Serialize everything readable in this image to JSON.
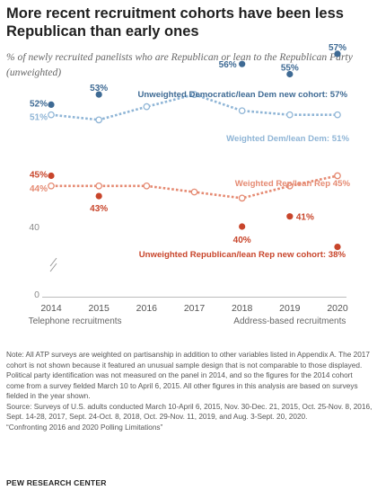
{
  "title": "More recent recruitment cohorts have been less Republican than early ones",
  "subtitle": "% of newly recruited panelists who are Republican or lean to the Republican Party (unweighted)",
  "note": "Note: All ATP surveys are weighted on partisanship in addition to other variables listed in Appendix A. The 2017 cohort is not shown because it featured an unusual sample design that is not comparable to those displayed. Political party identification was not measured on the panel in 2014, and so the figures for the 2014 cohort come from a survey fielded March 10 to April 6, 2015. All other figures in this analysis are based on surveys fielded in the year shown.",
  "source": "Source: Surveys of U.S. adults conducted March 10-April 6, 2015, Nov. 30-Dec. 21, 2015, Oct. 25-Nov. 8, 2016, Sept. 14-28, 2017, Sept. 24-Oct. 8, 2018, Oct. 29-Nov. 11, 2019, and Aug. 3-Sept. 20, 2020.",
  "report": "“Confronting 2016 and 2020 Polling Limitations”",
  "org": "PEW RESEARCH CENTER",
  "chart_data": {
    "type": "scatter",
    "title": "More recent recruitment cohorts have been less Republican than early ones",
    "subtitle": "% of newly recruited panelists who are Republican or lean to the Republican Party (unweighted)",
    "x": [
      2014,
      2015,
      2016,
      2017,
      2018,
      2019,
      2020
    ],
    "x_tick_labels": [
      "2014",
      "2015",
      "2016",
      "2017",
      "2018",
      "2019",
      "2020"
    ],
    "y_tick_labels": [
      "0",
      "40"
    ],
    "axis_break": true,
    "grid": false,
    "x_groups": [
      {
        "label": "Telephone recruitments",
        "from": 2014,
        "to": 2015
      },
      {
        "label": "Address-based recruitments",
        "from": 2018,
        "to": 2020
      }
    ],
    "series": [
      {
        "name": "Unweighted Democratic/lean Dem new cohort",
        "kind": "points",
        "color": "#3e6a94",
        "x": [
          2014,
          2015,
          2018,
          2019,
          2020
        ],
        "values": [
          52,
          53,
          56,
          55,
          57
        ],
        "labels": [
          "52%",
          "53%",
          "56%",
          "55%",
          "57%"
        ],
        "end_label": "Unweighted Democratic/lean Dem new cohort: 57%"
      },
      {
        "name": "Weighted Dem/lean Dem",
        "kind": "line",
        "color": "#8fb5d6",
        "x": [
          2014,
          2015,
          2016,
          2017,
          2018,
          2019,
          2020
        ],
        "values": [
          51,
          50.5,
          51.8,
          53,
          51.4,
          51,
          51
        ],
        "labels": [
          "51%",
          "",
          "",
          "",
          "",
          "",
          ""
        ],
        "end_label": "Weighted Dem/lean Dem: 51%"
      },
      {
        "name": "Weighted Rep/lean Rep",
        "kind": "line",
        "color": "#e58a72",
        "x": [
          2014,
          2015,
          2016,
          2017,
          2018,
          2019,
          2020
        ],
        "values": [
          44,
          44,
          44,
          43.4,
          42.8,
          44,
          45
        ],
        "labels": [
          "44%",
          "",
          "",
          "",
          "",
          "",
          ""
        ],
        "end_label": "Weighted Rep/lean Rep 45%"
      },
      {
        "name": "Unweighted Republican/lean Rep new cohort",
        "kind": "points",
        "color": "#c8452b",
        "x": [
          2014,
          2015,
          2018,
          2019,
          2020
        ],
        "values": [
          45,
          43,
          40,
          41,
          38
        ],
        "labels": [
          "45%",
          "43%",
          "40%",
          "41%",
          ""
        ],
        "end_label": "Unweighted Republican/lean Rep new cohort: 38%"
      }
    ]
  }
}
